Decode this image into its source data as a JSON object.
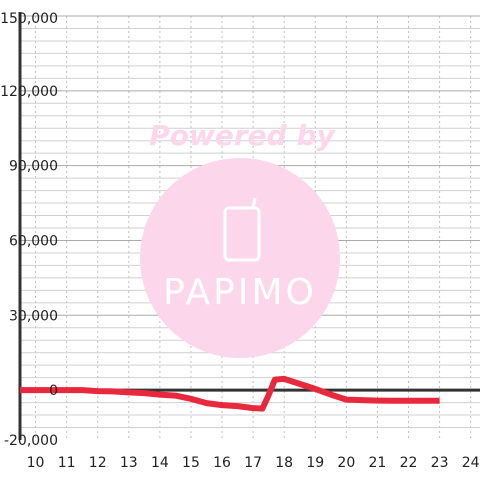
{
  "chart_data": {
    "type": "line",
    "title": "",
    "xlabel": "",
    "ylabel": "",
    "xlim": [
      9.5,
      24.3
    ],
    "ylim": [
      -20000,
      150000
    ],
    "x_ticks": [
      10,
      11,
      12,
      13,
      14,
      15,
      16,
      17,
      18,
      19,
      20,
      21,
      22,
      23,
      24
    ],
    "x_tick_labels": [
      "10",
      "11",
      "12",
      "13",
      "14",
      "15",
      "16",
      "17",
      "18",
      "19",
      "20",
      "21",
      "22",
      "23",
      "24"
    ],
    "y_ticks": [
      -20000,
      0,
      30000,
      60000,
      90000,
      120000,
      150000
    ],
    "y_tick_labels": [
      "-20,000",
      "0",
      "30,000",
      "60,000",
      "90,000",
      "120,000",
      "150,000"
    ],
    "grid": true,
    "series": [
      {
        "color": "#e8283c",
        "x": [
          9.5,
          10.5,
          11.0,
          11.5,
          12.0,
          12.5,
          13.0,
          13.5,
          14.0,
          14.5,
          15.0,
          15.5,
          16.0,
          16.5,
          17.0,
          17.3,
          17.5,
          17.7,
          18.0,
          18.5,
          19.0,
          19.5,
          20.0,
          20.5,
          21.0,
          21.5,
          22.0,
          22.5,
          23.0
        ],
        "y": [
          0,
          0,
          0,
          0,
          -400,
          -500,
          -900,
          -1200,
          -1800,
          -2200,
          -3500,
          -5200,
          -6000,
          -6400,
          -7200,
          -7400,
          -2000,
          4200,
          4500,
          2500,
          500,
          -1800,
          -3800,
          -4000,
          -4200,
          -4300,
          -4300,
          -4300,
          -4300
        ]
      }
    ]
  },
  "watermark": {
    "powered_text": "Powered by",
    "logo_text": "PAPIMO",
    "circle_color": "#fcd6ea",
    "text_color": "#ffffff",
    "powered_color": "#fcd6ea"
  },
  "colors": {
    "grid": "#bfbfbf",
    "axis": "#333333",
    "zero_line": "#333333"
  }
}
